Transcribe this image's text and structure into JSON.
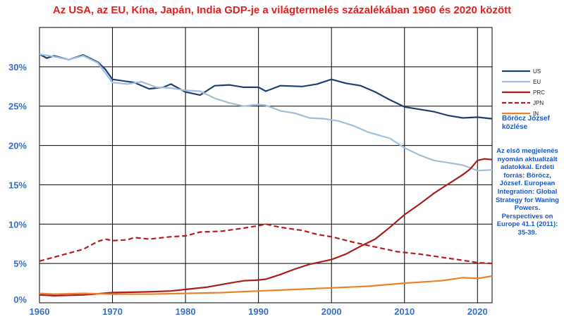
{
  "chart_data": {
    "type": "line",
    "title": "Az USA, az EU, Kína, Japán, India GDP-je a világtermelés százalékában 1960 és 2020 között",
    "xlim": [
      1960,
      2022
    ],
    "ylim": [
      0,
      35
    ],
    "x_ticks": [
      "1960",
      "1970",
      "1980",
      "1990",
      "2000",
      "2010",
      "2020"
    ],
    "y_ticks": [
      {
        "value": 0,
        "label": "0%"
      },
      {
        "value": 5,
        "label": "5%"
      },
      {
        "value": 10,
        "label": "10%"
      },
      {
        "value": 15,
        "label": "15%"
      },
      {
        "value": 20,
        "label": "20%"
      },
      {
        "value": 25,
        "label": "25%"
      },
      {
        "value": 30,
        "label": "30%"
      }
    ],
    "grid": true,
    "legend_position": "right",
    "series": [
      {
        "name": "US",
        "color": "#1f3f73",
        "dash": false,
        "points": [
          [
            1960,
            31.6
          ],
          [
            1961,
            31.1
          ],
          [
            1962,
            31.4
          ],
          [
            1964,
            30.9
          ],
          [
            1966,
            31.5
          ],
          [
            1968,
            30.6
          ],
          [
            1969,
            29.7
          ],
          [
            1970,
            28.4
          ],
          [
            1973,
            28.0
          ],
          [
            1975,
            27.2
          ],
          [
            1977,
            27.4
          ],
          [
            1978,
            27.8
          ],
          [
            1980,
            26.8
          ],
          [
            1982,
            26.4
          ],
          [
            1984,
            27.6
          ],
          [
            1986,
            27.7
          ],
          [
            1988,
            27.4
          ],
          [
            1990,
            27.4
          ],
          [
            1991,
            26.9
          ],
          [
            1993,
            27.6
          ],
          [
            1996,
            27.5
          ],
          [
            1998,
            27.8
          ],
          [
            2000,
            28.4
          ],
          [
            2002,
            27.9
          ],
          [
            2004,
            27.6
          ],
          [
            2006,
            26.8
          ],
          [
            2008,
            25.8
          ],
          [
            2010,
            24.9
          ],
          [
            2012,
            24.6
          ],
          [
            2014,
            24.3
          ],
          [
            2016,
            23.8
          ],
          [
            2018,
            23.5
          ],
          [
            2020,
            23.6
          ],
          [
            2022,
            23.4
          ]
        ]
      },
      {
        "name": "EU",
        "color": "#9fbfdc",
        "dash": false,
        "points": [
          [
            1960,
            31.6
          ],
          [
            1962,
            31.3
          ],
          [
            1964,
            30.9
          ],
          [
            1966,
            31.4
          ],
          [
            1968,
            30.5
          ],
          [
            1970,
            28.0
          ],
          [
            1972,
            27.8
          ],
          [
            1974,
            28.1
          ],
          [
            1976,
            27.4
          ],
          [
            1978,
            27.3
          ],
          [
            1980,
            27.0
          ],
          [
            1982,
            26.9
          ],
          [
            1984,
            26.0
          ],
          [
            1986,
            25.4
          ],
          [
            1988,
            25.0
          ],
          [
            1990,
            25.2
          ],
          [
            1991,
            25.1
          ],
          [
            1993,
            24.4
          ],
          [
            1995,
            24.1
          ],
          [
            1997,
            23.5
          ],
          [
            1999,
            23.4
          ],
          [
            2001,
            23.1
          ],
          [
            2003,
            22.5
          ],
          [
            2005,
            21.7
          ],
          [
            2008,
            20.9
          ],
          [
            2010,
            19.7
          ],
          [
            2012,
            18.8
          ],
          [
            2014,
            18.1
          ],
          [
            2016,
            17.8
          ],
          [
            2018,
            17.5
          ],
          [
            2020,
            16.8
          ],
          [
            2022,
            16.9
          ]
        ]
      },
      {
        "name": "PRC",
        "color": "#a81c1c",
        "dash": false,
        "points": [
          [
            1960,
            1.0
          ],
          [
            1962,
            0.9
          ],
          [
            1966,
            1.0
          ],
          [
            1970,
            1.3
          ],
          [
            1975,
            1.4
          ],
          [
            1978,
            1.5
          ],
          [
            1980,
            1.7
          ],
          [
            1983,
            2.0
          ],
          [
            1986,
            2.5
          ],
          [
            1988,
            2.8
          ],
          [
            1990,
            2.9
          ],
          [
            1991,
            3.0
          ],
          [
            1993,
            3.6
          ],
          [
            1995,
            4.3
          ],
          [
            1997,
            4.9
          ],
          [
            2000,
            5.5
          ],
          [
            2002,
            6.2
          ],
          [
            2004,
            7.2
          ],
          [
            2006,
            8.1
          ],
          [
            2008,
            9.6
          ],
          [
            2010,
            11.2
          ],
          [
            2012,
            12.5
          ],
          [
            2014,
            13.9
          ],
          [
            2016,
            15.1
          ],
          [
            2018,
            16.3
          ],
          [
            2019,
            17.0
          ],
          [
            2020,
            18.1
          ],
          [
            2021,
            18.3
          ],
          [
            2022,
            18.2
          ]
        ]
      },
      {
        "name": "JPN",
        "color": "#b81c1c",
        "dash": true,
        "points": [
          [
            1960,
            5.3
          ],
          [
            1962,
            5.8
          ],
          [
            1964,
            6.3
          ],
          [
            1966,
            6.8
          ],
          [
            1968,
            7.8
          ],
          [
            1969,
            8.1
          ],
          [
            1970,
            7.9
          ],
          [
            1972,
            8.0
          ],
          [
            1973,
            8.3
          ],
          [
            1975,
            8.1
          ],
          [
            1978,
            8.4
          ],
          [
            1980,
            8.5
          ],
          [
            1982,
            9.0
          ],
          [
            1985,
            9.1
          ],
          [
            1988,
            9.5
          ],
          [
            1990,
            9.8
          ],
          [
            1991,
            10.0
          ],
          [
            1993,
            9.6
          ],
          [
            1996,
            9.2
          ],
          [
            1998,
            8.7
          ],
          [
            2000,
            8.4
          ],
          [
            2003,
            7.7
          ],
          [
            2006,
            7.1
          ],
          [
            2009,
            6.5
          ],
          [
            2012,
            6.2
          ],
          [
            2015,
            5.8
          ],
          [
            2018,
            5.4
          ],
          [
            2020,
            5.1
          ],
          [
            2022,
            5.0
          ]
        ]
      },
      {
        "name": "IN",
        "color": "#e8832a",
        "dash": false,
        "points": [
          [
            1960,
            1.2
          ],
          [
            1962,
            1.1
          ],
          [
            1966,
            1.2
          ],
          [
            1970,
            1.1
          ],
          [
            1975,
            1.1
          ],
          [
            1980,
            1.2
          ],
          [
            1985,
            1.3
          ],
          [
            1990,
            1.5
          ],
          [
            1995,
            1.7
          ],
          [
            2000,
            1.9
          ],
          [
            2005,
            2.1
          ],
          [
            2010,
            2.5
          ],
          [
            2015,
            2.8
          ],
          [
            2018,
            3.2
          ],
          [
            2020,
            3.1
          ],
          [
            2022,
            3.4
          ]
        ]
      }
    ]
  },
  "credit": "Böröcz József közlése",
  "source_note": "Az első megjelenés nyomán aktualizált adatokkal. Erdeti forrás: Böröcz, József. European Integration: Global Strategy for Waning Powers. Perspectives on Europe 41.1 (2011): 35-39."
}
